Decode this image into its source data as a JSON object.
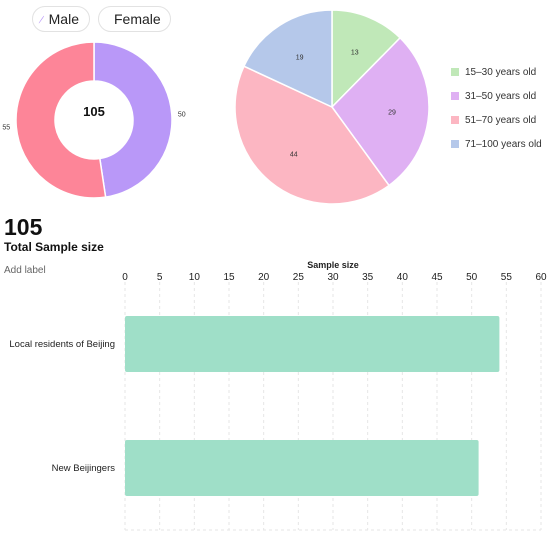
{
  "gender_legend": {
    "male_label": "Male",
    "female_label": "Female",
    "male_color": "#b998f8",
    "female_color": "#fd8598"
  },
  "summary": {
    "total_value": "105",
    "total_label": "Total Sample size",
    "add_label": "Add label"
  },
  "chart_data": [
    {
      "type": "pie",
      "variant": "donut",
      "center_label": "105",
      "categories": [
        "Male",
        "Female"
      ],
      "values": [
        50,
        55
      ],
      "colors": [
        "#b998f8",
        "#fd8598"
      ],
      "legend": "top"
    },
    {
      "type": "pie",
      "categories": [
        "15–30 years old",
        "31–50 years old",
        "51–70 years old",
        "71–100 years old"
      ],
      "values": [
        13,
        29,
        44,
        19
      ],
      "colors": [
        "#c0e8b8",
        "#dfb0f3",
        "#fcb6c2",
        "#b5c8ea"
      ],
      "legend": "right"
    },
    {
      "type": "bar",
      "orientation": "horizontal",
      "title": "Sample size",
      "categories": [
        "Local residents of Beijing",
        "New Beijingers"
      ],
      "values": [
        54,
        51
      ],
      "color": "#9fdfc8",
      "xlim": [
        0,
        60
      ],
      "xticks": [
        0,
        5,
        10,
        15,
        20,
        25,
        30,
        35,
        40,
        45,
        50,
        55,
        60
      ],
      "grid": true
    }
  ]
}
